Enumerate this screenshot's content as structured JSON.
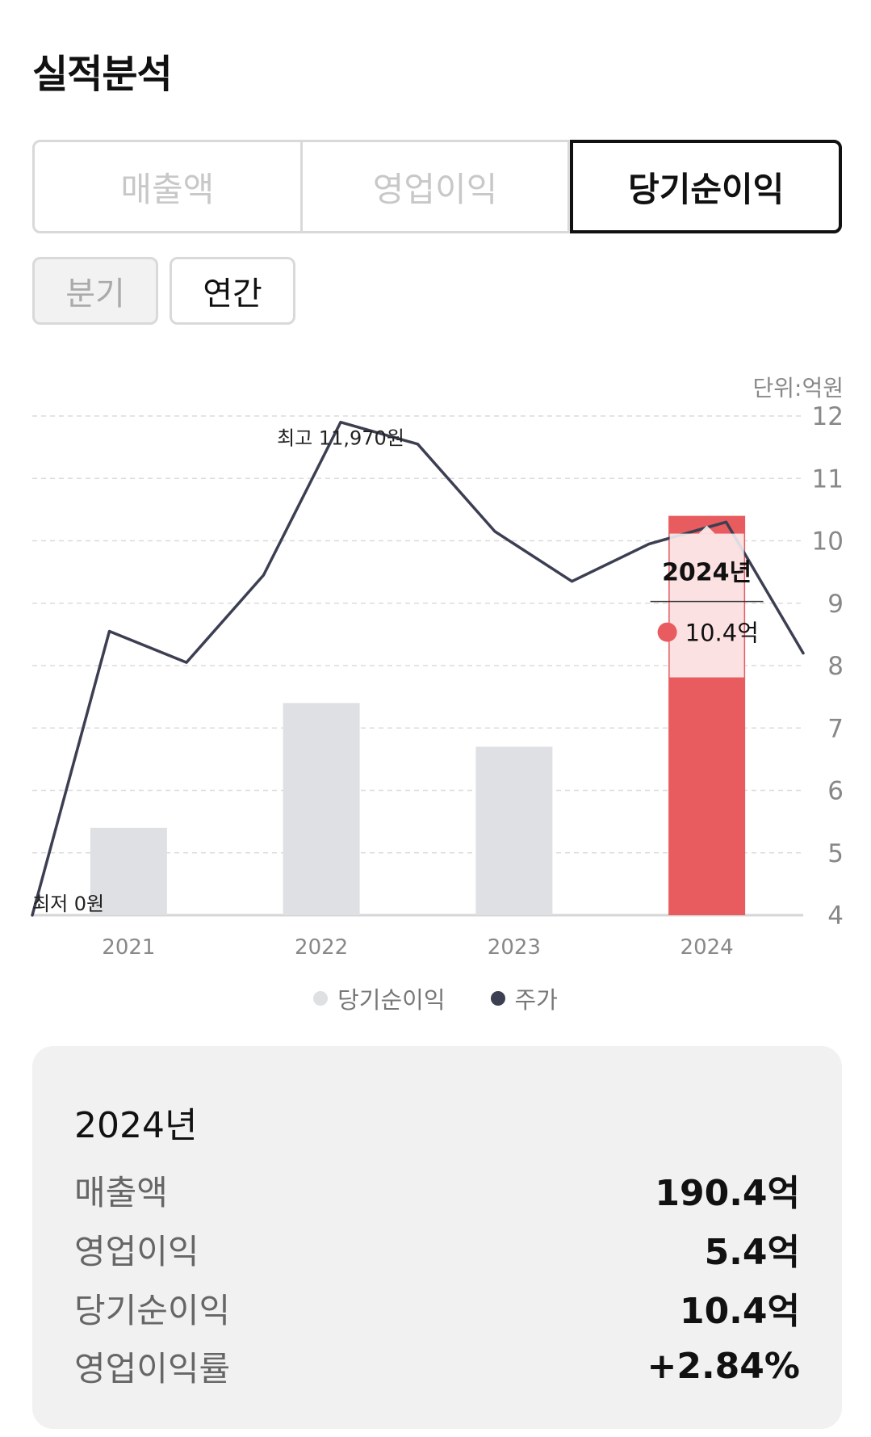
{
  "page": {
    "title": "실적분석"
  },
  "metric_tabs": [
    "매출액",
    "영업이익",
    "당기순이익"
  ],
  "metric_active": "당기순이익",
  "period_tabs": {
    "quarter": "분기",
    "annual": "연간",
    "active": "연간"
  },
  "chart_data": {
    "type": "bar",
    "unit_label": "단위:억원",
    "categories": [
      "2021",
      "2022",
      "2023",
      "2024"
    ],
    "series": [
      {
        "name": "당기순이익",
        "values": [
          5.4,
          7.4,
          6.7,
          10.4
        ],
        "color": "#dfe0e4",
        "highlight_color": "#e85c5f"
      },
      {
        "name": "주가",
        "type": "line",
        "color": "#3c3f52",
        "points": [
          {
            "x": 0.0,
            "y": 4.0
          },
          {
            "x": 0.4,
            "y": 8.55
          },
          {
            "x": 0.8,
            "y": 8.05
          },
          {
            "x": 1.2,
            "y": 9.45
          },
          {
            "x": 1.6,
            "y": 11.9
          },
          {
            "x": 2.0,
            "y": 11.55
          },
          {
            "x": 2.4,
            "y": 10.15
          },
          {
            "x": 2.8,
            "y": 9.35
          },
          {
            "x": 3.2,
            "y": 9.95
          },
          {
            "x": 3.6,
            "y": 10.3
          },
          {
            "x": 4.0,
            "y": 8.2
          }
        ]
      }
    ],
    "ylim": [
      4,
      12
    ],
    "yticks": [
      4,
      5,
      6,
      7,
      8,
      9,
      10,
      11,
      12
    ],
    "grid": true,
    "annotations": {
      "max_label": "최고 11,970원",
      "min_label": "최저 0원"
    },
    "tooltip": {
      "title": "2024년",
      "value": "10.4억",
      "dot_color": "#e85c5f"
    },
    "legend": "bottom-center"
  },
  "summary": {
    "year": "2024년",
    "rows": [
      {
        "label": "매출액",
        "value": "190.4억"
      },
      {
        "label": "영업이익",
        "value": "5.4억"
      },
      {
        "label": "당기순이익",
        "value": "10.4억"
      },
      {
        "label": "영업이익률",
        "value": "+2.84%"
      }
    ]
  }
}
